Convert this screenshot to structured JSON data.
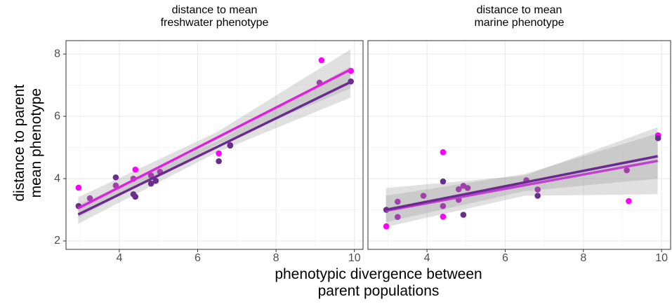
{
  "xlabel": "phenotypic divergence between\nparent populations",
  "ylabel": "distance to parent\nmean phenotype",
  "chart_data": [
    {
      "type": "scatter",
      "title": "distance to mean\nfreshwater phenotype",
      "xlim": [
        2.64,
        10.22
      ],
      "ylim": [
        1.73,
        8.43
      ],
      "xticks": [
        4,
        6,
        8,
        10
      ],
      "yticks": [
        2,
        4,
        6,
        8
      ],
      "grid": true,
      "series": [
        {
          "color": "#ff00ff",
          "x": [
            2.96,
            9.16,
            9.91,
            6.54,
            4.41
          ],
          "values": [
            3.71,
            7.8,
            7.46,
            4.81,
            4.29
          ]
        },
        {
          "color": "#a040a8",
          "x": [
            3.25,
            3.91,
            4.36,
            4.81,
            5.04,
            6.83,
            9.11
          ],
          "values": [
            3.37,
            3.78,
            4.0,
            4.1,
            4.22,
            5.08,
            7.08
          ]
        },
        {
          "color": "#66308a",
          "x": [
            2.96,
            3.91,
            4.36,
            4.41,
            4.81,
            4.93,
            6.54,
            6.83,
            9.91
          ],
          "values": [
            3.12,
            4.04,
            3.5,
            3.42,
            3.84,
            3.93,
            4.56,
            5.06,
            7.12
          ]
        }
      ],
      "fits": [
        {
          "color": "#e020e0",
          "x": [
            2.95,
            6.5,
            9.9
          ],
          "values": [
            3.05,
            5.32,
            7.5
          ],
          "lower": [
            2.75,
            5.1,
            6.9
          ],
          "upper": [
            3.4,
            5.5,
            8.15
          ]
        },
        {
          "color": "#6a2a90",
          "x": [
            2.95,
            6.5,
            9.9
          ],
          "values": [
            2.85,
            5.02,
            7.1
          ],
          "lower": [
            2.55,
            4.85,
            6.6
          ],
          "upper": [
            3.15,
            5.2,
            7.6
          ]
        }
      ]
    },
    {
      "type": "scatter",
      "title": "distance to mean\nmarine phenotype",
      "xlim": [
        2.49,
        10.23
      ],
      "ylim": [
        1.73,
        8.43
      ],
      "xticks": [
        4,
        6,
        8,
        10
      ],
      "yticks": [
        2,
        4,
        6,
        8
      ],
      "grid": true,
      "series": [
        {
          "color": "#ff00ff",
          "x": [
            2.96,
            4.41,
            4.41,
            9.16,
            9.91
          ],
          "values": [
            2.47,
            4.85,
            2.78,
            3.28,
            5.39
          ]
        },
        {
          "color": "#a040a8",
          "x": [
            3.25,
            3.25,
            3.91,
            4.41,
            4.81,
            4.93,
            4.81,
            5.04,
            6.83,
            6.54,
            9.11
          ],
          "values": [
            3.26,
            2.77,
            3.45,
            3.12,
            3.66,
            3.77,
            3.32,
            3.7,
            3.65,
            3.95,
            4.27
          ]
        },
        {
          "color": "#66308a",
          "x": [
            2.96,
            4.41,
            4.93,
            6.83,
            9.91
          ],
          "values": [
            3.0,
            3.91,
            2.84,
            3.45,
            5.3
          ]
        }
      ],
      "fits": [
        {
          "color": "#c040d0",
          "x": [
            2.95,
            6.5,
            9.9
          ],
          "values": [
            2.97,
            3.79,
            4.57
          ],
          "lower": [
            2.45,
            3.45,
            3.5
          ],
          "upper": [
            3.7,
            4.1,
            5.65
          ]
        },
        {
          "color": "#6a2a90",
          "x": [
            2.95,
            6.5,
            9.9
          ],
          "values": [
            3.0,
            3.88,
            4.72
          ],
          "lower": [
            2.6,
            3.6,
            4.0
          ],
          "upper": [
            3.45,
            4.15,
            5.45
          ]
        }
      ]
    }
  ]
}
